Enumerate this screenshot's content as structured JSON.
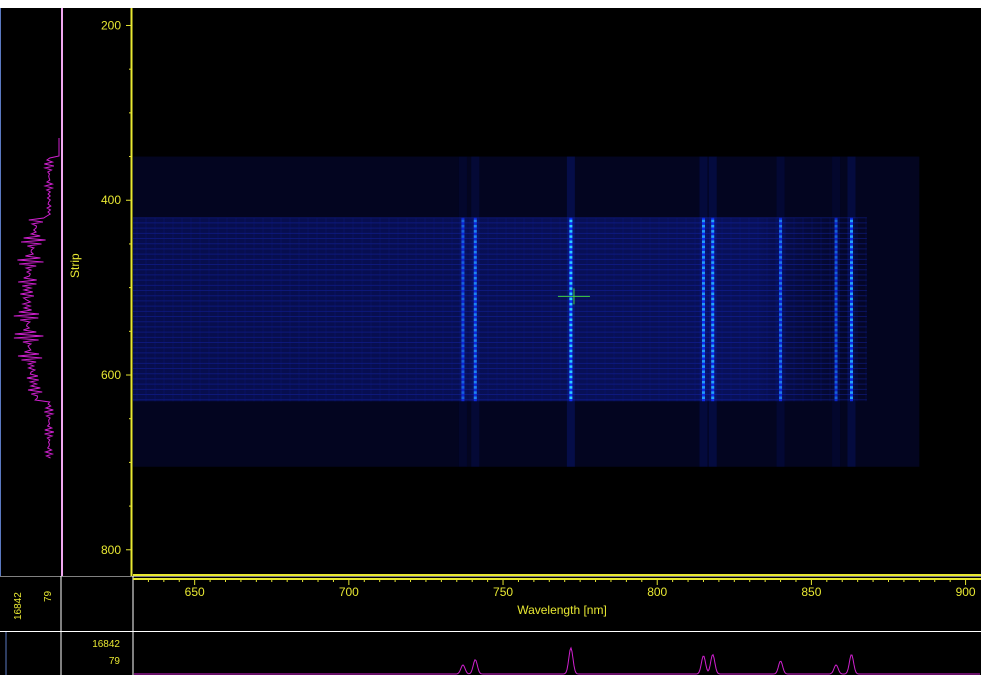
{
  "y_axis": {
    "label": "Strip",
    "ticks": [
      "200",
      "400",
      "600",
      "800"
    ]
  },
  "x_axis": {
    "label": "Wavelength [nm]",
    "ticks": [
      "650",
      "700",
      "750",
      "800",
      "850",
      "900"
    ]
  },
  "corner": {
    "max_value": "16842",
    "min_value": "79"
  },
  "bottom_panel": {
    "max_value": "16842",
    "min_value": "79"
  },
  "colors": {
    "axis": "#e8e832",
    "profile": "#d020d0",
    "cursor": "#40d040",
    "line_core": "#2ee0ff",
    "line_glow": "#1030ff",
    "background": "#000000"
  },
  "chart_data": {
    "type": "heatmap",
    "xlabel": "Wavelength [nm]",
    "ylabel": "Strip",
    "xlim": [
      630,
      905
    ],
    "ylim": [
      180,
      830
    ],
    "x_ticks": [
      650,
      700,
      750,
      800,
      850,
      900
    ],
    "y_ticks": [
      200,
      400,
      600,
      800
    ],
    "band_strips": [
      420,
      630
    ],
    "lines": [
      {
        "wavelength": 737,
        "intensity": 0.35
      },
      {
        "wavelength": 741,
        "intensity": 0.55
      },
      {
        "wavelength": 772,
        "intensity": 1.0
      },
      {
        "wavelength": 815,
        "intensity": 0.7
      },
      {
        "wavelength": 818,
        "intensity": 0.75
      },
      {
        "wavelength": 840,
        "intensity": 0.5
      },
      {
        "wavelength": 858,
        "intensity": 0.35
      },
      {
        "wavelength": 863,
        "intensity": 0.75
      }
    ],
    "cursor": {
      "wavelength": 773,
      "strip": 510
    }
  }
}
